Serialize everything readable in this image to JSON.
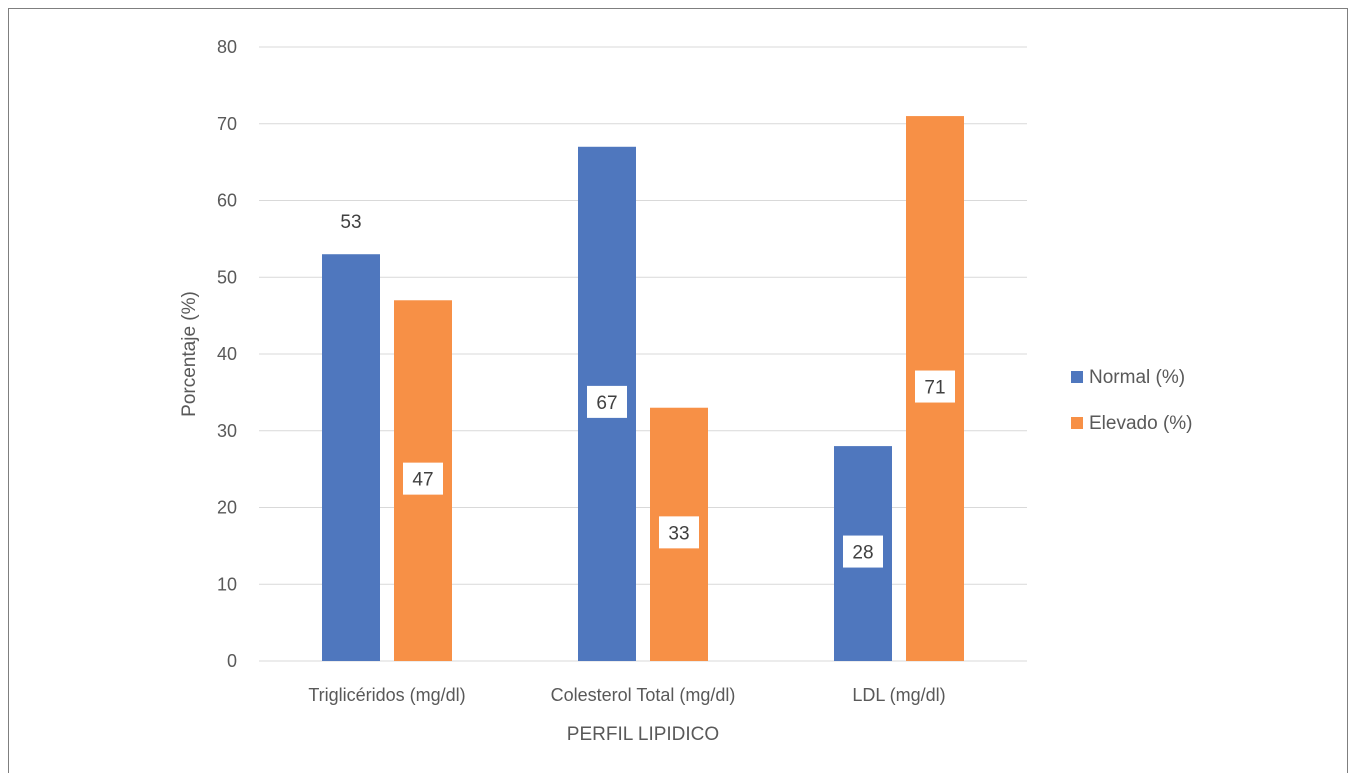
{
  "chart_data": {
    "type": "bar",
    "xlabel": "PERFIL LIPIDICO",
    "ylabel": "Porcentaje (%)",
    "ylim": [
      0,
      80
    ],
    "yticks": [
      "0",
      "10",
      "20",
      "30",
      "40",
      "50",
      "60",
      "70",
      "80"
    ],
    "categories": [
      "Triglicéridos (mg/dl)",
      "Colesterol Total (mg/dl)",
      "LDL (mg/dl)"
    ],
    "series": [
      {
        "name": "Normal (%)",
        "color": "#4F77BE",
        "values": [
          53,
          67,
          28
        ],
        "labels": [
          "53",
          "67",
          "28"
        ]
      },
      {
        "name": "Elevado (%)",
        "color": "#F79046",
        "values": [
          47,
          33,
          71
        ],
        "labels": [
          "47",
          "33",
          "71"
        ]
      }
    ],
    "grid": true,
    "legend_position": "right",
    "data_labels": true
  }
}
